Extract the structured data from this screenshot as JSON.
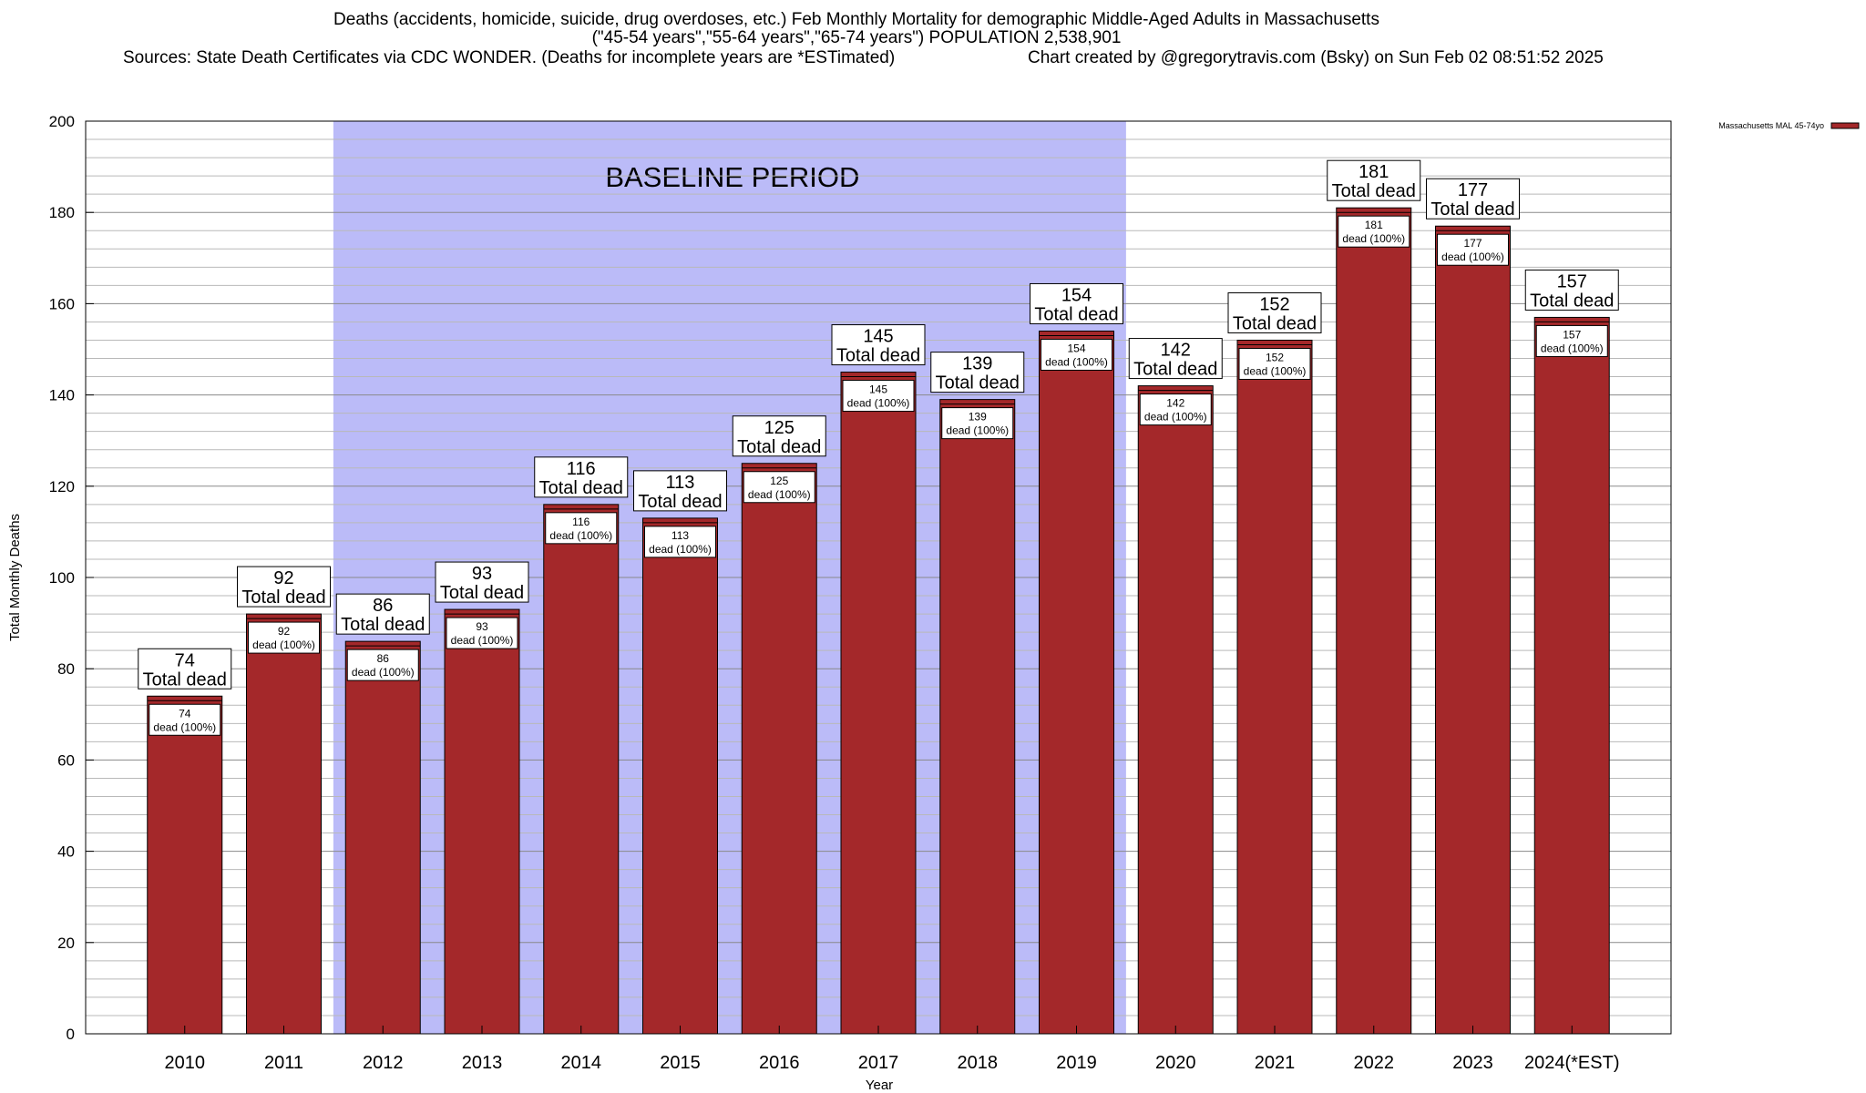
{
  "chart_data": {
    "type": "bar",
    "title": "Deaths (accidents, homicide, suicide, drug overdoses, etc.) Feb Monthly Mortality for demographic Middle-Aged Adults in Massachusetts",
    "subtitle": "(\"45-54 years\",\"55-64 years\",\"65-74 years\") POPULATION 2,538,901",
    "source": "Sources: State Death Certificates via CDC WONDER. (Deaths for incomplete years are *ESTimated)",
    "credit": "Chart created by @gregorytravis.com (Bsky) on Sun Feb 02 08:51:52 2025",
    "xlabel": "Year",
    "ylabel": "Total Monthly Deaths",
    "ylim": [
      0,
      200
    ],
    "yticks": [
      0,
      20,
      40,
      60,
      80,
      100,
      120,
      140,
      160,
      180,
      200
    ],
    "categories": [
      "2010",
      "2011",
      "2012",
      "2013",
      "2014",
      "2015",
      "2016",
      "2017",
      "2018",
      "2019",
      "2020",
      "2021",
      "2022",
      "2023",
      "2024(*EST)"
    ],
    "series": [
      {
        "name": "Massachusetts MAL 45-74yo",
        "color": "#a4282a",
        "values": [
          74,
          92,
          86,
          93,
          116,
          113,
          125,
          145,
          139,
          154,
          142,
          152,
          181,
          177,
          157
        ]
      }
    ],
    "total_label_text": "Total dead",
    "inner_label_text": "dead (100%)",
    "baseline": {
      "label": "BASELINE PERIOD",
      "from": "2012",
      "to": "2019",
      "color": "#bbbbf8"
    },
    "legend": {
      "label": "Massachusetts MAL 45-74yo",
      "position": "top-right"
    },
    "grid": true
  }
}
